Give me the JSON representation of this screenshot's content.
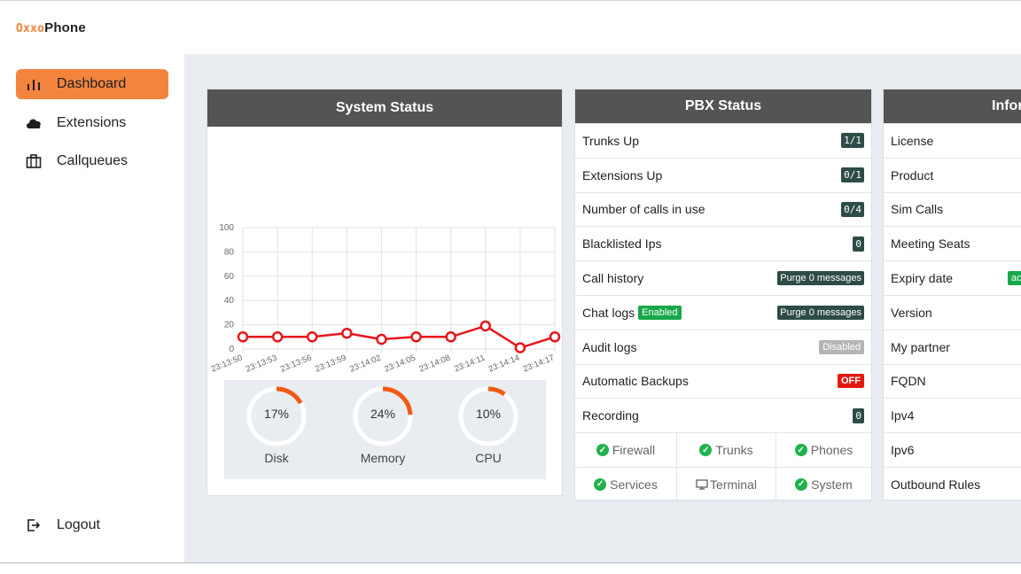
{
  "app": {
    "brand_part1": "Oxxo",
    "brand_part2": "Phone"
  },
  "sidebar": {
    "items": [
      {
        "label": "Dashboard",
        "icon": "bar-chart-icon",
        "active": true
      },
      {
        "label": "Extensions",
        "icon": "cloud-icon"
      },
      {
        "label": "Callqueues",
        "icon": "briefcase-icon"
      }
    ],
    "logout_label": "Logout"
  },
  "system_status": {
    "title": "System Status",
    "chart_data": {
      "type": "line",
      "x": [
        "23:13:50",
        "23:13:53",
        "23:13:56",
        "23:13:59",
        "23:14:02",
        "23:14:05",
        "23:14:08",
        "23:14:11",
        "23:14:14",
        "23:14:17"
      ],
      "series": [
        {
          "values": [
            10,
            10,
            10,
            13,
            8,
            10,
            10,
            19,
            1,
            10
          ]
        }
      ],
      "yticks": [
        "100",
        "80",
        "60",
        "40",
        "20",
        "0"
      ],
      "ylim": [
        0,
        100
      ],
      "grid": true,
      "line_color": "#e8141a"
    },
    "gauges": [
      {
        "pct_label": "17%",
        "value": 0.17,
        "label": "Disk"
      },
      {
        "pct_label": "24%",
        "value": 0.24,
        "label": "Memory"
      },
      {
        "pct_label": "10%",
        "value": 0.1,
        "label": "CPU"
      }
    ]
  },
  "pbx_status": {
    "title": "PBX Status",
    "rows": [
      {
        "label": "Trunks Up",
        "value": "1/1"
      },
      {
        "label": "Extensions Up",
        "value": "0/1"
      },
      {
        "label": "Number of calls in use",
        "value": "0/4"
      },
      {
        "label": "Blacklisted Ips",
        "value": "0"
      },
      {
        "label": "Call history",
        "value": "Purge 0 messages"
      },
      {
        "label": "Chat logs",
        "status": "Enabled",
        "value": "Purge 0 messages"
      },
      {
        "label": "Audit logs",
        "value": "Disabled"
      },
      {
        "label": "Automatic Backups",
        "value": "OFF"
      },
      {
        "label": "Recording",
        "value": "0"
      }
    ],
    "services": [
      {
        "label": "Firewall",
        "icon": "check-circle-icon"
      },
      {
        "label": "Trunks",
        "icon": "check-circle-icon"
      },
      {
        "label": "Phones",
        "icon": "check-circle-icon"
      },
      {
        "label": "Services",
        "icon": "check-circle-icon"
      },
      {
        "label": "Terminal",
        "icon": "monitor-icon"
      },
      {
        "label": "System",
        "icon": "check-circle-icon"
      }
    ]
  },
  "information": {
    "title": "Infor",
    "rows": [
      "License",
      "Product",
      "Sim Calls",
      "Meeting Seats",
      "Expiry date",
      "Version",
      "My partner",
      "FQDN",
      "Ipv4",
      "Ipv6",
      "Outbound Rules"
    ],
    "expiry_badge": "ac"
  },
  "colors": {
    "accent": "#f3843e",
    "header": "#545454",
    "badge": "#2d4b47",
    "ok": "#22b14c",
    "off": "#e4190f",
    "gauge": "#f25a14"
  }
}
